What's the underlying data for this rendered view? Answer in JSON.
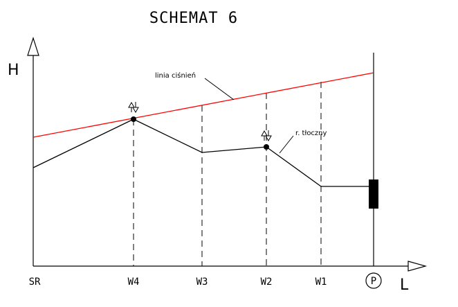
{
  "title": "SCHEMAT 6",
  "axes": {
    "vertical": "H",
    "horizontal": "L"
  },
  "stations": [
    "SR",
    "W4",
    "W3",
    "W2",
    "W1",
    "P"
  ],
  "annotations": {
    "pressure_line": "linia ciśnień",
    "pipeline": "r. tłoczny"
  },
  "colors": {
    "pressure_line": "#ff0000",
    "pipeline": "#000000"
  },
  "icons": [
    "air-valve-icon",
    "pump-icon"
  ]
}
